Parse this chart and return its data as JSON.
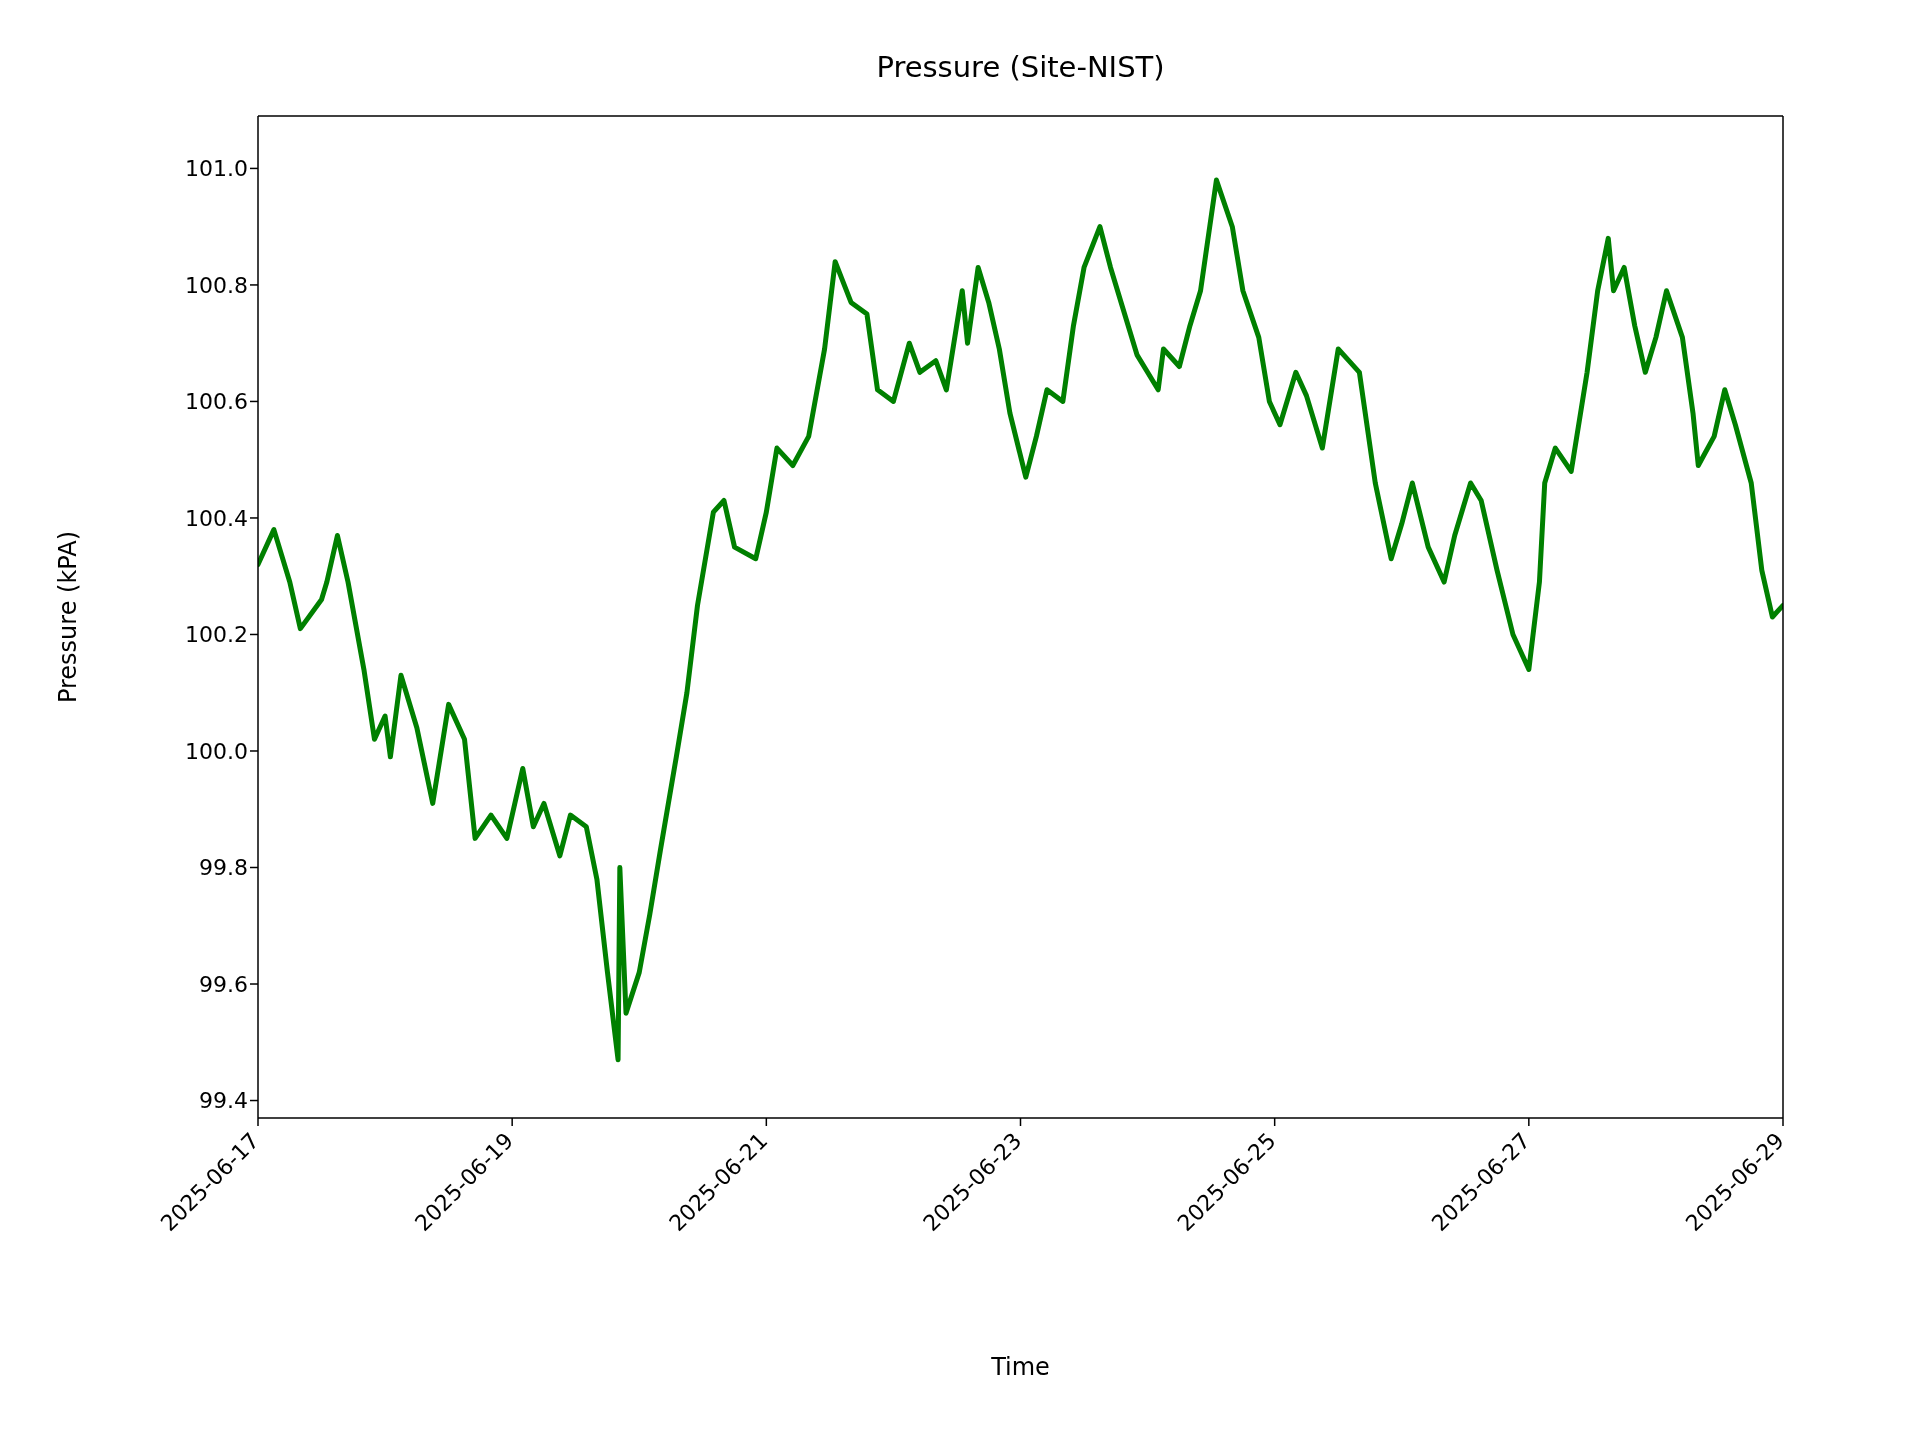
{
  "chart_data": {
    "type": "line",
    "title": "Pressure (Site-NIST)",
    "xlabel": "Time",
    "ylabel": "Pressure (kPA)",
    "x": [
      "2025-06-17T00:00",
      "2025-06-17T03:00",
      "2025-06-17T06:00",
      "2025-06-17T08:00",
      "2025-06-17T12:00",
      "2025-06-17T13:00",
      "2025-06-17T15:00",
      "2025-06-17T17:00",
      "2025-06-17T20:00",
      "2025-06-17T22:00",
      "2025-06-18T00:00",
      "2025-06-18T01:00",
      "2025-06-18T03:00",
      "2025-06-18T06:00",
      "2025-06-18T09:00",
      "2025-06-18T12:00",
      "2025-06-18T15:00",
      "2025-06-18T17:00",
      "2025-06-18T20:00",
      "2025-06-18T23:00",
      "2025-06-19T02:00",
      "2025-06-19T04:00",
      "2025-06-19T06:00",
      "2025-06-19T09:00",
      "2025-06-19T11:00",
      "2025-06-19T14:00",
      "2025-06-19T16:00",
      "2025-06-19T18:00",
      "2025-06-19T20:00",
      "2025-06-19T20:20",
      "2025-06-19T21:30",
      "2025-06-20T00:00",
      "2025-06-20T02:00",
      "2025-06-20T04:00",
      "2025-06-20T07:00",
      "2025-06-20T09:00",
      "2025-06-20T11:00",
      "2025-06-20T14:00",
      "2025-06-20T16:00",
      "2025-06-20T18:00",
      "2025-06-20T22:00",
      "2025-06-21T00:00",
      "2025-06-21T02:00",
      "2025-06-21T05:00",
      "2025-06-21T08:00",
      "2025-06-21T11:00",
      "2025-06-21T13:00",
      "2025-06-21T16:00",
      "2025-06-21T19:00",
      "2025-06-21T21:00",
      "2025-06-22T00:00",
      "2025-06-22T03:00",
      "2025-06-22T05:00",
      "2025-06-22T08:00",
      "2025-06-22T10:00",
      "2025-06-22T13:00",
      "2025-06-22T14:00",
      "2025-06-22T16:00",
      "2025-06-22T18:00",
      "2025-06-22T20:00",
      "2025-06-22T22:00",
      "2025-06-23T01:00",
      "2025-06-23T03:00",
      "2025-06-23T05:00",
      "2025-06-23T08:00",
      "2025-06-23T10:00",
      "2025-06-23T12:00",
      "2025-06-23T15:00",
      "2025-06-23T17:00",
      "2025-06-23T19:00",
      "2025-06-23T22:00",
      "2025-06-24T00:00",
      "2025-06-24T02:00",
      "2025-06-24T03:00",
      "2025-06-24T06:00",
      "2025-06-24T08:00",
      "2025-06-24T10:00",
      "2025-06-24T13:00",
      "2025-06-24T16:00",
      "2025-06-24T18:00",
      "2025-06-24T21:00",
      "2025-06-24T23:00",
      "2025-06-25T01:00",
      "2025-06-25T04:00",
      "2025-06-25T06:00",
      "2025-06-25T09:00",
      "2025-06-25T12:00",
      "2025-06-25T14:00",
      "2025-06-25T16:00",
      "2025-06-25T19:00",
      "2025-06-25T22:00",
      "2025-06-26T00:00",
      "2025-06-26T02:00",
      "2025-06-26T05:00",
      "2025-06-26T08:00",
      "2025-06-26T10:00",
      "2025-06-26T13:00",
      "2025-06-26T15:00",
      "2025-06-26T18:00",
      "2025-06-26T21:00",
      "2025-06-27T00:00",
      "2025-06-27T02:00",
      "2025-06-27T03:00",
      "2025-06-27T05:00",
      "2025-06-27T08:00",
      "2025-06-27T11:00",
      "2025-06-27T13:00",
      "2025-06-27T15:00",
      "2025-06-27T16:00",
      "2025-06-27T18:00",
      "2025-06-27T20:00",
      "2025-06-27T22:00",
      "2025-06-28T00:00",
      "2025-06-28T02:00",
      "2025-06-28T05:00",
      "2025-06-28T07:00",
      "2025-06-28T08:00",
      "2025-06-28T11:00",
      "2025-06-28T13:00",
      "2025-06-28T15:00",
      "2025-06-28T18:00",
      "2025-06-28T20:00",
      "2025-06-28T22:00",
      "2025-06-29T00:00"
    ],
    "series": [
      {
        "color": "#008000",
        "values": [
          100.32,
          100.38,
          100.29,
          100.21,
          100.26,
          100.29,
          100.37,
          100.29,
          100.14,
          100.02,
          100.06,
          99.99,
          100.13,
          100.04,
          99.91,
          100.08,
          100.02,
          99.85,
          99.89,
          99.85,
          99.97,
          99.87,
          99.91,
          99.82,
          99.89,
          99.87,
          99.78,
          99.62,
          99.47,
          99.8,
          99.55,
          99.62,
          99.72,
          99.83,
          99.99,
          100.1,
          100.25,
          100.41,
          100.43,
          100.35,
          100.33,
          100.41,
          100.52,
          100.49,
          100.54,
          100.69,
          100.84,
          100.77,
          100.75,
          100.62,
          100.6,
          100.7,
          100.65,
          100.67,
          100.62,
          100.79,
          100.7,
          100.83,
          100.77,
          100.69,
          100.58,
          100.47,
          100.54,
          100.62,
          100.6,
          100.73,
          100.83,
          100.9,
          100.83,
          100.77,
          100.68,
          100.65,
          100.62,
          100.69,
          100.66,
          100.73,
          100.79,
          100.98,
          100.9,
          100.79,
          100.71,
          100.6,
          100.56,
          100.65,
          100.61,
          100.52,
          100.69,
          100.67,
          100.65,
          100.46,
          100.33,
          100.39,
          100.46,
          100.35,
          100.29,
          100.37,
          100.46,
          100.43,
          100.31,
          100.2,
          100.14,
          100.29,
          100.46,
          100.52,
          100.48,
          100.65,
          100.79,
          100.88,
          100.79,
          100.83,
          100.73,
          100.65,
          100.71,
          100.79,
          100.71,
          100.58,
          100.49,
          100.54,
          100.62,
          100.56,
          100.46,
          100.31,
          100.23,
          100.25
        ]
      }
    ],
    "xlim": [
      "2025-06-17",
      "2025-06-29"
    ],
    "xticks": [
      "2025-06-17",
      "2025-06-19",
      "2025-06-21",
      "2025-06-23",
      "2025-06-25",
      "2025-06-27",
      "2025-06-29"
    ],
    "ylim": [
      99.37,
      101.09
    ],
    "yticks": [
      99.4,
      99.6,
      99.8,
      {
        "value": 100,
        "label": "100.0"
      },
      100.2,
      100.4,
      100.6,
      100.8,
      {
        "value": 101,
        "label": "101.0"
      }
    ],
    "grid": false,
    "legend": false,
    "marker": "none",
    "line_style": "solid"
  }
}
